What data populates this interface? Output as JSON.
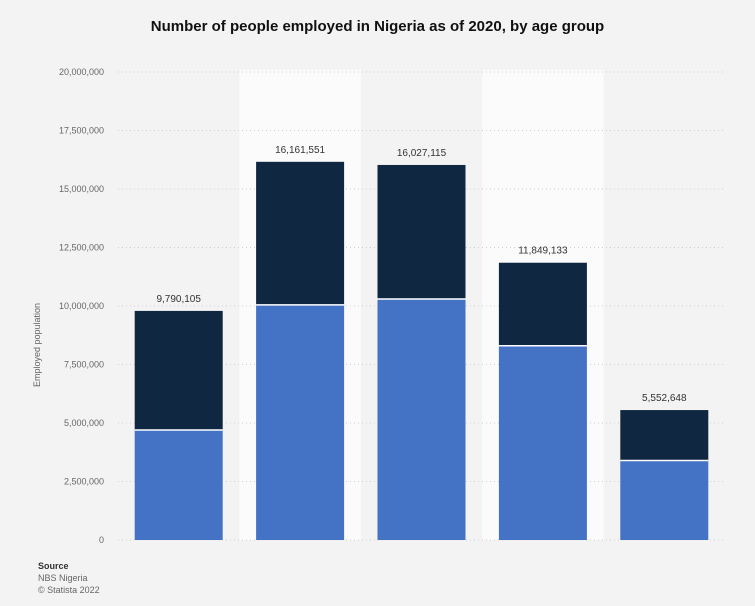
{
  "chart_data": {
    "type": "bar",
    "stacked": true,
    "title": "Number of people employed in Nigeria as of 2020, by age group",
    "xlabel": "",
    "ylabel": "Employed population",
    "ylim": [
      0,
      20000000
    ],
    "yticks": [
      0,
      2500000,
      5000000,
      7500000,
      10000000,
      12500000,
      15000000,
      17500000,
      20000000
    ],
    "ytick_labels": [
      "0",
      "2,500,000",
      "5,000,000",
      "7,500,000",
      "10,000,000",
      "12,500,000",
      "15,000,000",
      "17,500,000",
      "20,000,000"
    ],
    "categories": [
      "",
      "",
      "",
      "",
      ""
    ],
    "series": [
      {
        "color": "#4472c4",
        "values": [
          4700000,
          10050000,
          10300000,
          8300000,
          3400000
        ]
      },
      {
        "color": "#0f2740",
        "values": [
          5090105,
          6111551,
          5727115,
          3549133,
          2152648
        ]
      }
    ],
    "totals": [
      9790105,
      16161551,
      16027115,
      11849133,
      5552648
    ],
    "total_labels": [
      "9,790,105",
      "16,161,551",
      "16,027,115",
      "11,849,133",
      "5,552,648"
    ],
    "grid": true,
    "legend": "none"
  },
  "source": {
    "header": "Source",
    "line1": "NBS Nigeria",
    "line2": "© Statista 2022"
  }
}
